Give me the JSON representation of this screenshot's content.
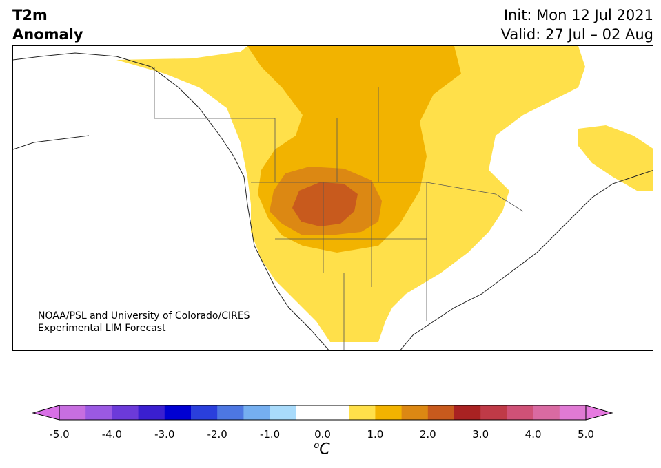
{
  "title": {
    "left": "T2m\nAnomaly",
    "init": "Init: Mon 12 Jul 2021",
    "valid": "Valid: 27 Jul – 02 Aug"
  },
  "credit": {
    "line1": "NOAA/PSL and University of Colorado/CIRES",
    "line2": "Experimental LIM Forecast"
  },
  "colorbar": {
    "unit_main": "C",
    "unit_sup": "o",
    "ticks": [
      "-5.0",
      "-4.0",
      "-3.0",
      "-2.0",
      "-1.0",
      "0.0",
      "1.0",
      "2.0",
      "3.0",
      "4.0",
      "5.0"
    ],
    "colors": [
      "#c76ee0",
      "#9b59e3",
      "#6c3ad9",
      "#3a1fd0",
      "#0000d2",
      "#2a3fdc",
      "#4d77e2",
      "#75aff0",
      "#a9dbfb",
      "#ffffff",
      "#ffffff",
      "#ffe04a",
      "#f2b300",
      "#dc8813",
      "#c85a1d",
      "#a92222",
      "#bf3a47",
      "#cf5177",
      "#d96aa2",
      "#e07ad4"
    ],
    "under_color": "#d870e6",
    "over_color": "#e67ae0"
  },
  "map_colors": {
    "background": "#ffffff",
    "coast": "#222222",
    "anomaly_1": "#ffe04a",
    "anomaly_2": "#f2b300",
    "anomaly_3": "#dc8813",
    "anomaly_4": "#c85a1d"
  }
}
